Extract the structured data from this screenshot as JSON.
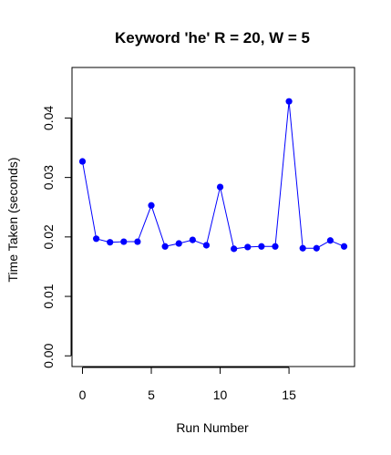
{
  "chart_data": {
    "type": "line",
    "title": "Keyword 'he' R = 20, W = 5",
    "xlabel": "Run Number",
    "ylabel": "Time Taken (seconds)",
    "xlim": [
      -0.76,
      19.76
    ],
    "ylim": [
      -0.0018,
      0.0485
    ],
    "x_ticks": [
      0,
      5,
      10,
      15
    ],
    "y_ticks": [
      0.0,
      0.01,
      0.02,
      0.03,
      0.04
    ],
    "y_tick_labels": [
      "0.00",
      "0.01",
      "0.02",
      "0.03",
      "0.04"
    ],
    "grid": false,
    "legend": "none",
    "series": [
      {
        "line_color": "#0000ff",
        "point_color": "#0000ff",
        "x": [
          0,
          1,
          2,
          3,
          4,
          5,
          6,
          7,
          8,
          9,
          10,
          11,
          12,
          13,
          14,
          15,
          16,
          17,
          18,
          19
        ],
        "values": [
          0.0327,
          0.0197,
          0.0191,
          0.0192,
          0.0192,
          0.0253,
          0.0184,
          0.0189,
          0.0195,
          0.0186,
          0.0284,
          0.018,
          0.0183,
          0.0184,
          0.0184,
          0.0428,
          0.0181,
          0.0181,
          0.0194,
          0.0184
        ]
      }
    ]
  }
}
